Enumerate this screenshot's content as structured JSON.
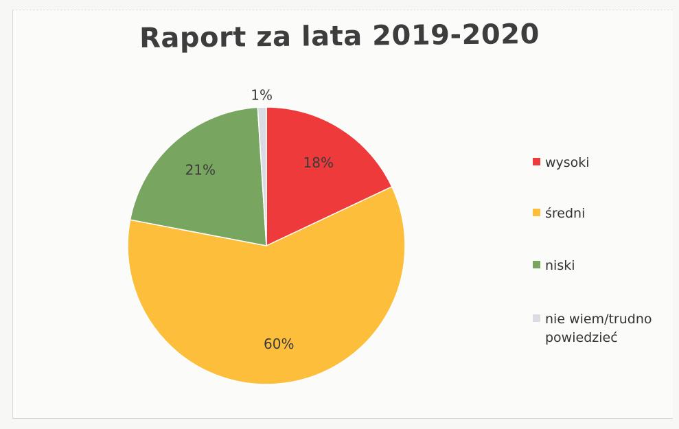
{
  "chart_data": {
    "type": "pie",
    "title": "Raport za lata 2019-2020",
    "slices": [
      {
        "label": "wysoki",
        "value": 18,
        "display": "18%",
        "color": "#ee3a3a"
      },
      {
        "label": "średni",
        "value": 60,
        "display": "60%",
        "color": "#fdbe3b"
      },
      {
        "label": "niski",
        "value": 21,
        "display": "21%",
        "color": "#78a55f"
      },
      {
        "label": "nie wiem/trudno powiedzieć",
        "value": 1,
        "display": "1%",
        "color": "#d9dde3"
      }
    ],
    "start_angle_deg": 0,
    "direction": "clockwise",
    "legend_position": "right"
  }
}
